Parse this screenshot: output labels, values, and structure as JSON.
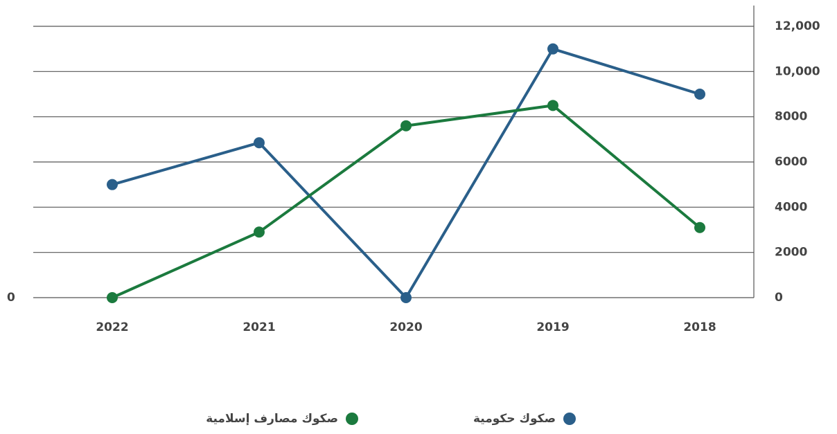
{
  "chart_data": {
    "type": "line",
    "categories": [
      "2022",
      "2021",
      "2020",
      "2019",
      "2018"
    ],
    "series": [
      {
        "name": "صكوك حكومية",
        "color": "#2a5f8a",
        "values": [
          5000,
          6850,
          0,
          11000,
          9000
        ]
      },
      {
        "name": "صكوك مصارف إسلامية",
        "color": "#1b7a3e",
        "values": [
          0,
          2900,
          7600,
          8500,
          3100
        ]
      }
    ],
    "ylim": [
      0,
      12000
    ],
    "yticks": [
      0,
      2000,
      4000,
      6000,
      8000,
      {
        "value": 10000,
        "label": "10,000"
      },
      {
        "value": 12000,
        "label": "12,000"
      }
    ],
    "y2lim": [
      0,
      12000
    ],
    "y2ticks": [
      0
    ],
    "grid": true
  }
}
